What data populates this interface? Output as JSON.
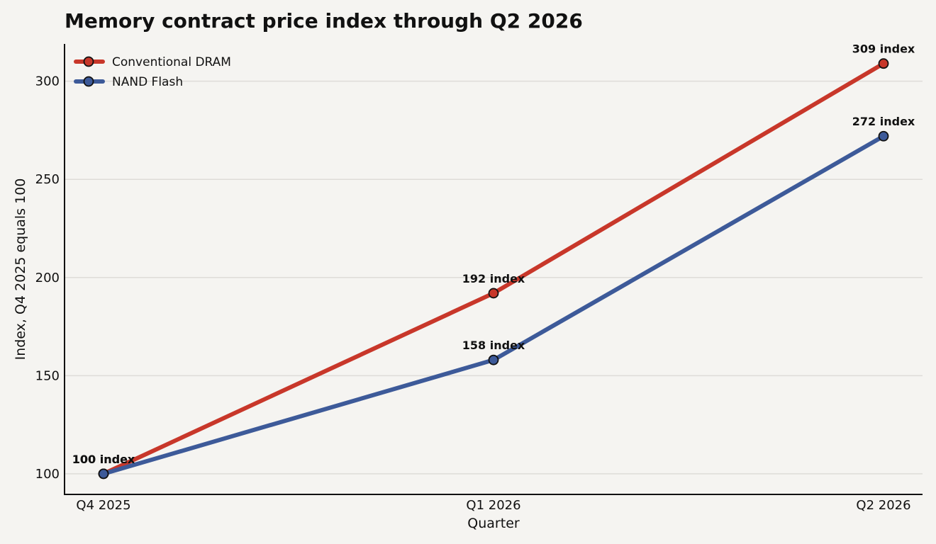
{
  "chart_data": {
    "type": "line",
    "title": "Memory contract price index through Q2 2026",
    "xlabel": "Quarter",
    "ylabel": "Index, Q4 2025 equals 100",
    "categories": [
      "Q4 2025",
      "Q1 2026",
      "Q2 2026"
    ],
    "ylim": [
      89.5,
      319
    ],
    "yticks": [
      100,
      150,
      200,
      250,
      300
    ],
    "grid": "horizontal",
    "legend_position": "top-left",
    "series": [
      {
        "name": "Conventional DRAM",
        "values": [
          100,
          192,
          309
        ],
        "labels": [
          "100 index",
          "192 index",
          "309 index"
        ],
        "color": "#c8372a"
      },
      {
        "name": "NAND Flash",
        "values": [
          100,
          158,
          272
        ],
        "labels": [
          "100 index",
          "158 index",
          "272 index"
        ],
        "color": "#3d5a99"
      }
    ]
  }
}
